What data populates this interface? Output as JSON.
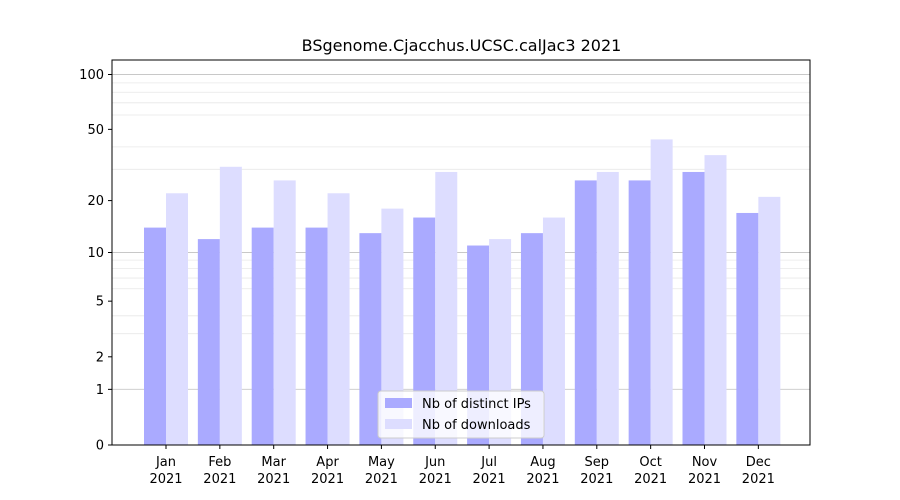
{
  "chart_data": {
    "type": "bar",
    "title": "BSgenome.Cjacchus.UCSC.calJac3 2021",
    "xlabel": "",
    "ylabel": "",
    "categories": [
      [
        "Jan",
        "2021"
      ],
      [
        "Feb",
        "2021"
      ],
      [
        "Mar",
        "2021"
      ],
      [
        "Apr",
        "2021"
      ],
      [
        "May",
        "2021"
      ],
      [
        "Jun",
        "2021"
      ],
      [
        "Jul",
        "2021"
      ],
      [
        "Aug",
        "2021"
      ],
      [
        "Sep",
        "2021"
      ],
      [
        "Oct",
        "2021"
      ],
      [
        "Nov",
        "2021"
      ],
      [
        "Dec",
        "2021"
      ]
    ],
    "series": [
      {
        "name": "Nb of distinct IPs",
        "color": "#aaaaff",
        "values": [
          14,
          12,
          14,
          14,
          13,
          16,
          11,
          13,
          26,
          26,
          29,
          17
        ]
      },
      {
        "name": "Nb of downloads",
        "color": "#ddddff",
        "values": [
          22,
          31,
          26,
          22,
          18,
          29,
          12,
          16,
          29,
          44,
          36,
          21
        ]
      }
    ],
    "y_scale": "log(1+y)",
    "ylim": [
      0,
      120
    ],
    "y_ticks": [
      0,
      1,
      2,
      5,
      10,
      20,
      50,
      100
    ],
    "grid": true,
    "legend_position": "bottom-center"
  }
}
